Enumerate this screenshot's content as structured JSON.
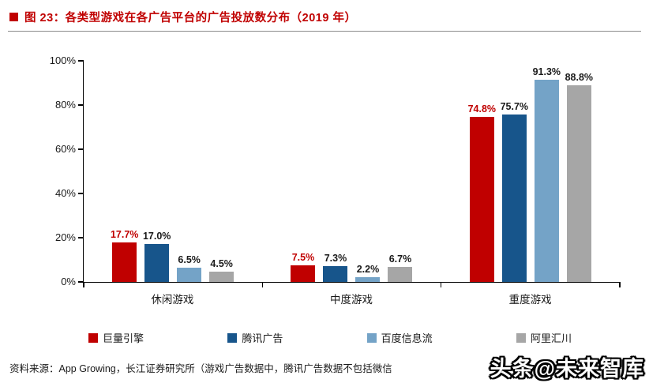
{
  "header": {
    "title": "图 23：各类型游戏在各广告平台的广告投放数分布（2019 年）"
  },
  "chart_data": {
    "type": "bar",
    "title": "各类型游戏在各广告平台的广告投放数分布（2019 年）",
    "categories": [
      "休闲游戏",
      "中度游戏",
      "重度游戏"
    ],
    "series": [
      {
        "name": "巨量引擎",
        "color": "#c00000",
        "label_color": "#c00000",
        "values": [
          17.7,
          7.5,
          74.8
        ]
      },
      {
        "name": "腾讯广告",
        "color": "#17558b",
        "label_color": "#1a1a1a",
        "values": [
          17.0,
          7.3,
          75.7
        ]
      },
      {
        "name": "百度信息流",
        "color": "#74a3c7",
        "label_color": "#1a1a1a",
        "values": [
          6.5,
          2.2,
          91.3
        ]
      },
      {
        "name": "阿里汇川",
        "color": "#a6a6a6",
        "label_color": "#1a1a1a",
        "values": [
          4.5,
          6.7,
          88.8
        ]
      }
    ],
    "y_ticks": [
      "0%",
      "20%",
      "40%",
      "60%",
      "80%",
      "100%"
    ],
    "ylim": [
      0,
      100
    ],
    "grid": false,
    "legend_position": "bottom",
    "value_suffix": "%"
  },
  "footer": {
    "source": "资料来源：App Growing，长江证券研究所（游戏广告数据中，腾讯广告数据不包括微信"
  },
  "watermark": "头条@未来智库"
}
